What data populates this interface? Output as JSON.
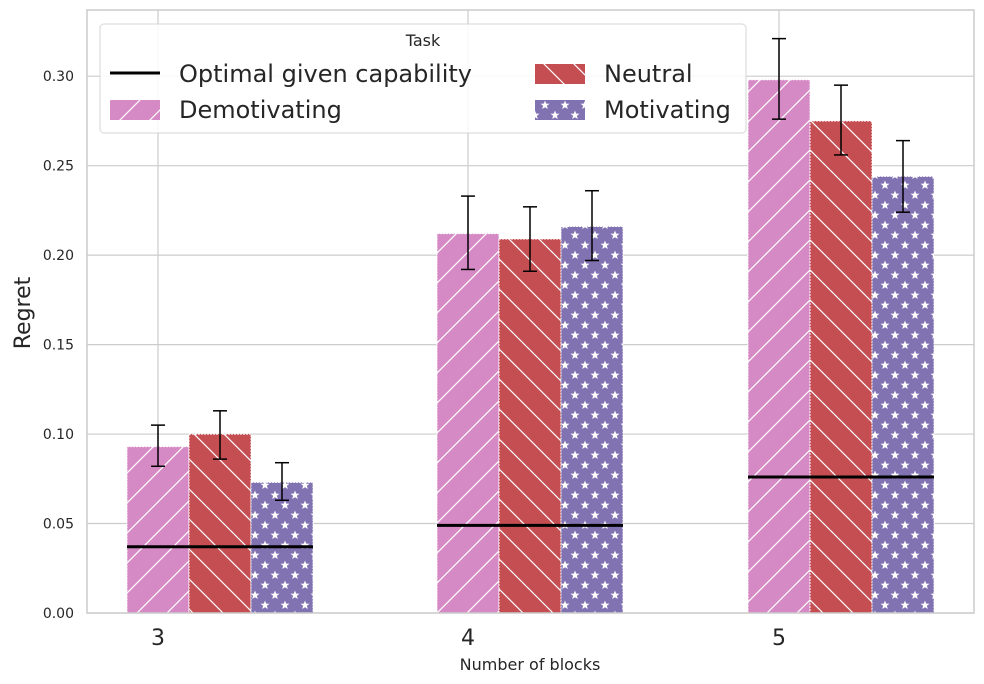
{
  "chart_data": {
    "type": "bar",
    "title": "",
    "xlabel": "Number of blocks",
    "ylabel": "Regret",
    "categories": [
      "3",
      "4",
      "5"
    ],
    "ylim": [
      0,
      0.337
    ],
    "yticks": [
      "0.00",
      "0.05",
      "0.10",
      "0.15",
      "0.20",
      "0.25",
      "0.30"
    ],
    "ytick_values": [
      0,
      0.05,
      0.1,
      0.15,
      0.2,
      0.25,
      0.3
    ],
    "grid": true,
    "legend_title": "Task",
    "legend_position": "top",
    "series": [
      {
        "name": "Demotivating",
        "color": "#d68ac5",
        "pattern": "forward-hatch",
        "values": [
          0.093,
          0.212,
          0.298
        ],
        "err_low": [
          0.082,
          0.192,
          0.276
        ],
        "err_high": [
          0.105,
          0.233,
          0.321
        ]
      },
      {
        "name": "Neutral",
        "color": "#c44e52",
        "pattern": "back-hatch",
        "values": [
          0.1,
          0.209,
          0.275
        ],
        "err_low": [
          0.086,
          0.191,
          0.256
        ],
        "err_high": [
          0.113,
          0.227,
          0.295
        ]
      },
      {
        "name": "Motivating",
        "color": "#8172b2",
        "pattern": "stars",
        "values": [
          0.073,
          0.216,
          0.244
        ],
        "err_low": [
          0.063,
          0.197,
          0.224
        ],
        "err_high": [
          0.084,
          0.236,
          0.264
        ]
      }
    ],
    "reference_line": {
      "name": "Optimal given capability",
      "color": "#000000",
      "values": [
        0.037,
        0.049,
        0.076
      ]
    }
  }
}
